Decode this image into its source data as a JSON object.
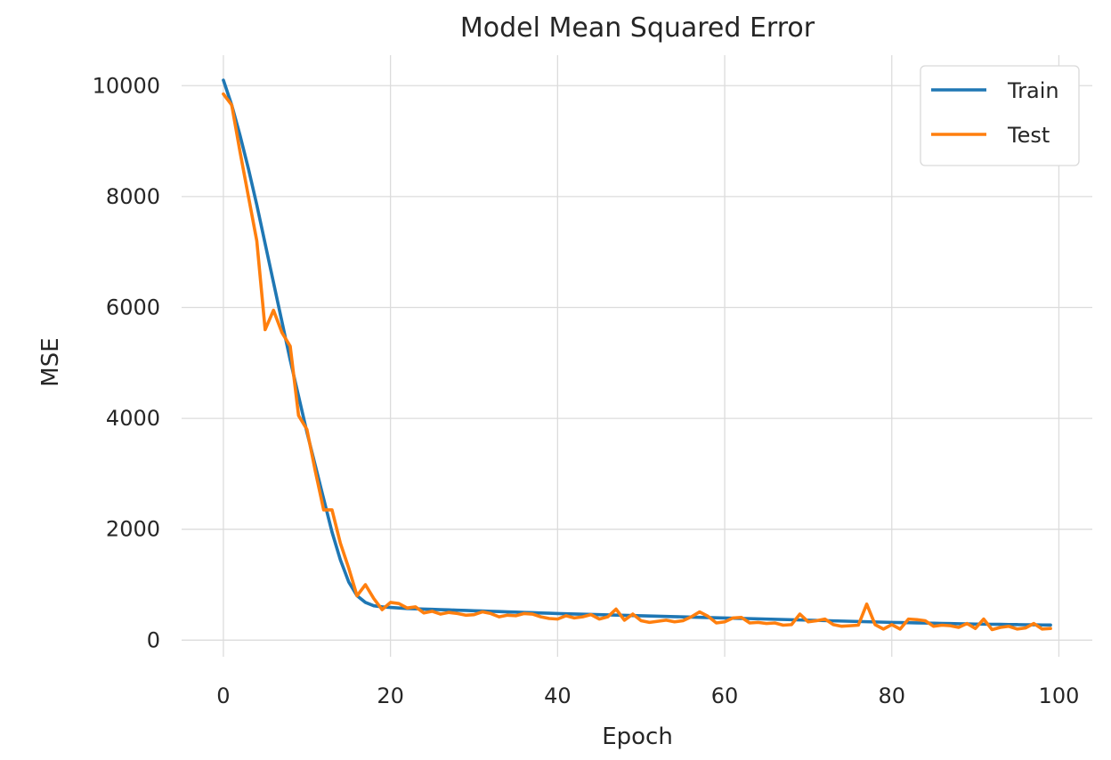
{
  "chart_data": {
    "type": "line",
    "title": "Model Mean Squared Error",
    "xlabel": "Epoch",
    "ylabel": "MSE",
    "xlim": [
      -5,
      104
    ],
    "ylim": [
      -300,
      10550
    ],
    "xticks": [
      0,
      20,
      40,
      60,
      80,
      100
    ],
    "yticks": [
      0,
      2000,
      4000,
      6000,
      8000,
      10000
    ],
    "grid": true,
    "legend_position": "top-right",
    "series": [
      {
        "name": "Train",
        "color": "#1f77b4",
        "x": [
          0,
          1,
          2,
          3,
          4,
          5,
          6,
          7,
          8,
          9,
          10,
          11,
          12,
          13,
          14,
          15,
          16,
          17,
          18,
          19,
          20,
          21,
          22,
          23,
          24,
          25,
          26,
          27,
          28,
          29,
          30,
          31,
          32,
          33,
          34,
          35,
          36,
          37,
          38,
          39,
          40,
          41,
          42,
          43,
          44,
          45,
          46,
          47,
          48,
          49,
          50,
          51,
          52,
          53,
          54,
          55,
          56,
          57,
          58,
          59,
          60,
          61,
          62,
          63,
          64,
          65,
          66,
          67,
          68,
          69,
          70,
          71,
          72,
          73,
          74,
          75,
          76,
          77,
          78,
          79,
          80,
          81,
          82,
          83,
          84,
          85,
          86,
          87,
          88,
          89,
          90,
          91,
          92,
          93,
          94,
          95,
          96,
          97,
          98,
          99
        ],
        "values": [
          10100,
          9650,
          9100,
          8500,
          7850,
          7150,
          6450,
          5750,
          5050,
          4400,
          3750,
          3150,
          2550,
          1950,
          1450,
          1050,
          800,
          680,
          620,
          600,
          590,
          580,
          570,
          565,
          560,
          555,
          550,
          545,
          540,
          535,
          530,
          525,
          520,
          515,
          510,
          505,
          500,
          495,
          490,
          485,
          480,
          476,
          472,
          468,
          464,
          460,
          456,
          452,
          448,
          444,
          440,
          436,
          432,
          428,
          424,
          420,
          416,
          412,
          408,
          404,
          400,
          396,
          392,
          388,
          384,
          380,
          376,
          372,
          368,
          364,
          360,
          356,
          352,
          348,
          344,
          340,
          336,
          332,
          328,
          324,
          320,
          317,
          314,
          311,
          308,
          305,
          302,
          299,
          296,
          293,
          290,
          288,
          286,
          284,
          282,
          280,
          278,
          276,
          274,
          272
        ]
      },
      {
        "name": "Test",
        "color": "#ff7f0e",
        "x": [
          0,
          1,
          2,
          3,
          4,
          5,
          6,
          7,
          8,
          9,
          10,
          11,
          12,
          13,
          14,
          15,
          16,
          17,
          18,
          19,
          20,
          21,
          22,
          23,
          24,
          25,
          26,
          27,
          28,
          29,
          30,
          31,
          32,
          33,
          34,
          35,
          36,
          37,
          38,
          39,
          40,
          41,
          42,
          43,
          44,
          45,
          46,
          47,
          48,
          49,
          50,
          51,
          52,
          53,
          54,
          55,
          56,
          57,
          58,
          59,
          60,
          61,
          62,
          63,
          64,
          65,
          66,
          67,
          68,
          69,
          70,
          71,
          72,
          73,
          74,
          75,
          76,
          77,
          78,
          79,
          80,
          81,
          82,
          83,
          84,
          85,
          86,
          87,
          88,
          89,
          90,
          91,
          92,
          93,
          94,
          95,
          96,
          97,
          98,
          99
        ],
        "values": [
          9850,
          9650,
          8800,
          8000,
          7200,
          5600,
          5950,
          5550,
          5300,
          4050,
          3800,
          3050,
          2350,
          2350,
          1750,
          1300,
          800,
          1000,
          750,
          550,
          680,
          660,
          580,
          600,
          490,
          520,
          470,
          500,
          480,
          450,
          460,
          510,
          480,
          420,
          450,
          440,
          480,
          470,
          420,
          390,
          380,
          440,
          400,
          420,
          460,
          380,
          420,
          560,
          360,
          470,
          350,
          320,
          340,
          360,
          330,
          350,
          420,
          510,
          430,
          310,
          330,
          400,
          410,
          310,
          320,
          300,
          310,
          270,
          280,
          470,
          330,
          350,
          380,
          280,
          250,
          260,
          270,
          650,
          280,
          200,
          280,
          200,
          380,
          370,
          350,
          250,
          270,
          260,
          230,
          300,
          210,
          380,
          190,
          230,
          250,
          200,
          220,
          300,
          200,
          210
        ]
      }
    ]
  }
}
